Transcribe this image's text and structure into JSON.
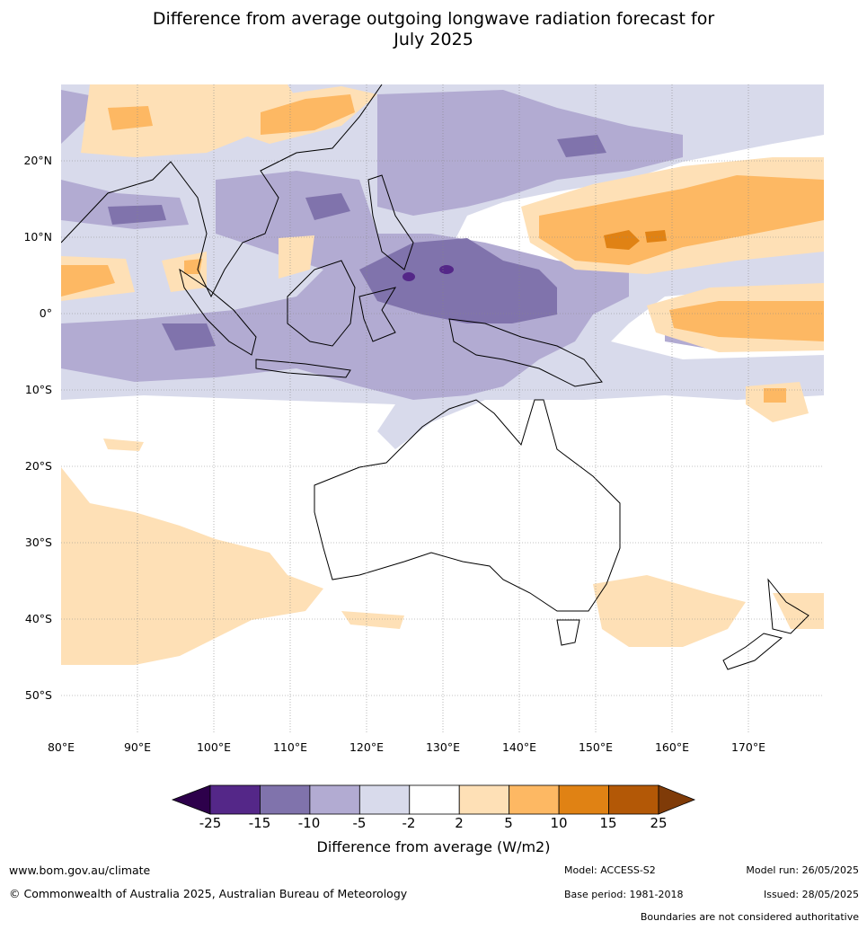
{
  "title_line1": "Difference from average outgoing longwave radiation forecast for",
  "title_line2": "July 2025",
  "map": {
    "lat_labels": [
      "20°N",
      "10°N",
      "0°",
      "10°S",
      "20°S",
      "30°S",
      "40°S",
      "50°S"
    ],
    "lat_values": [
      20,
      10,
      0,
      -10,
      -20,
      -30,
      -40,
      -50
    ],
    "lon_labels": [
      "80°E",
      "90°E",
      "100°E",
      "110°E",
      "120°E",
      "130°E",
      "140°E",
      "150°E",
      "160°E",
      "170°E"
    ],
    "lon_values": [
      80,
      90,
      100,
      110,
      120,
      130,
      140,
      150,
      160,
      170
    ],
    "extent": {
      "lon_min": 80,
      "lon_max": 180,
      "lat_min": -55,
      "lat_max": 30
    }
  },
  "colorbar": {
    "label": "Difference from average (W/m2)",
    "ticks": [
      "-25",
      "-15",
      "-10",
      "-5",
      "-2",
      "2",
      "5",
      "10",
      "15",
      "25"
    ],
    "under_color": "#2d004b",
    "over_color": "#7f3b08",
    "bin_colors": [
      "#542788",
      "#8073ac",
      "#b2abd2",
      "#d8daeb",
      "#ffffff",
      "#fee0b6",
      "#fdb863",
      "#e08214",
      "#b35806"
    ]
  },
  "footer": {
    "website": "www.bom.gov.au/climate",
    "copyright": "© Commonwealth of Australia 2025, Australian Bureau of Meteorology",
    "model": "Model: ACCESS-S2",
    "base_period": "Base period: 1981-2018",
    "model_run": "Model run: 26/05/2025",
    "issued": "Issued: 28/05/2025",
    "disclaimer": "Boundaries are not considered authoritative"
  }
}
